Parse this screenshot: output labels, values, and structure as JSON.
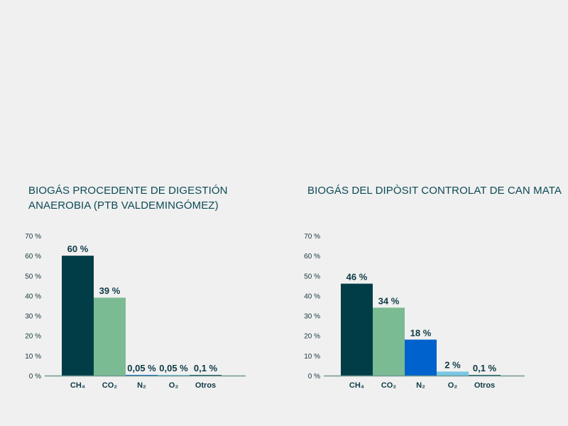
{
  "colors": {
    "ch4": "#003d47",
    "co2": "#7bbb93",
    "n2": "#0062cc",
    "o2": "#79c7e3",
    "otros": "#0f4f55",
    "axis": "#6e9992",
    "title": "#0d4a55"
  },
  "chart_data": [
    {
      "type": "bar",
      "title": "BIOGÁS PROCEDENTE DE DIGESTIÓN ANAEROBIA (PTB VALDEMINGÓMEZ)",
      "categories": [
        "CH₄",
        "CO₂",
        "N₂",
        "O₂",
        "Otros"
      ],
      "values": [
        60,
        39,
        0.05,
        0.05,
        0.1
      ],
      "value_labels": [
        "60 %",
        "39 %",
        "0,05 %",
        "0,05 %",
        "0,1 %"
      ],
      "y_ticks": [
        "0 %",
        "10 %",
        "20 %",
        "30 %",
        "40 %",
        "50 %",
        "60 %",
        "70 %"
      ],
      "ylim": [
        0,
        70
      ],
      "grid": false,
      "legend": "none"
    },
    {
      "type": "bar",
      "title": "BIOGÁS DEL DIPÒSIT CONTROLAT DE CAN MATA",
      "categories": [
        "CH₄",
        "CO₂",
        "N₂",
        "O₂",
        "Otros"
      ],
      "values": [
        46,
        34,
        18,
        2,
        0.1
      ],
      "value_labels": [
        "46 %",
        "34 %",
        "18 %",
        "2 %",
        "0,1 %"
      ],
      "y_ticks": [
        "0 %",
        "10 %",
        "20 %",
        "30 %",
        "40 %",
        "50 %",
        "60 %",
        "70 %"
      ],
      "ylim": [
        0,
        70
      ],
      "grid": false,
      "legend": "none"
    }
  ]
}
